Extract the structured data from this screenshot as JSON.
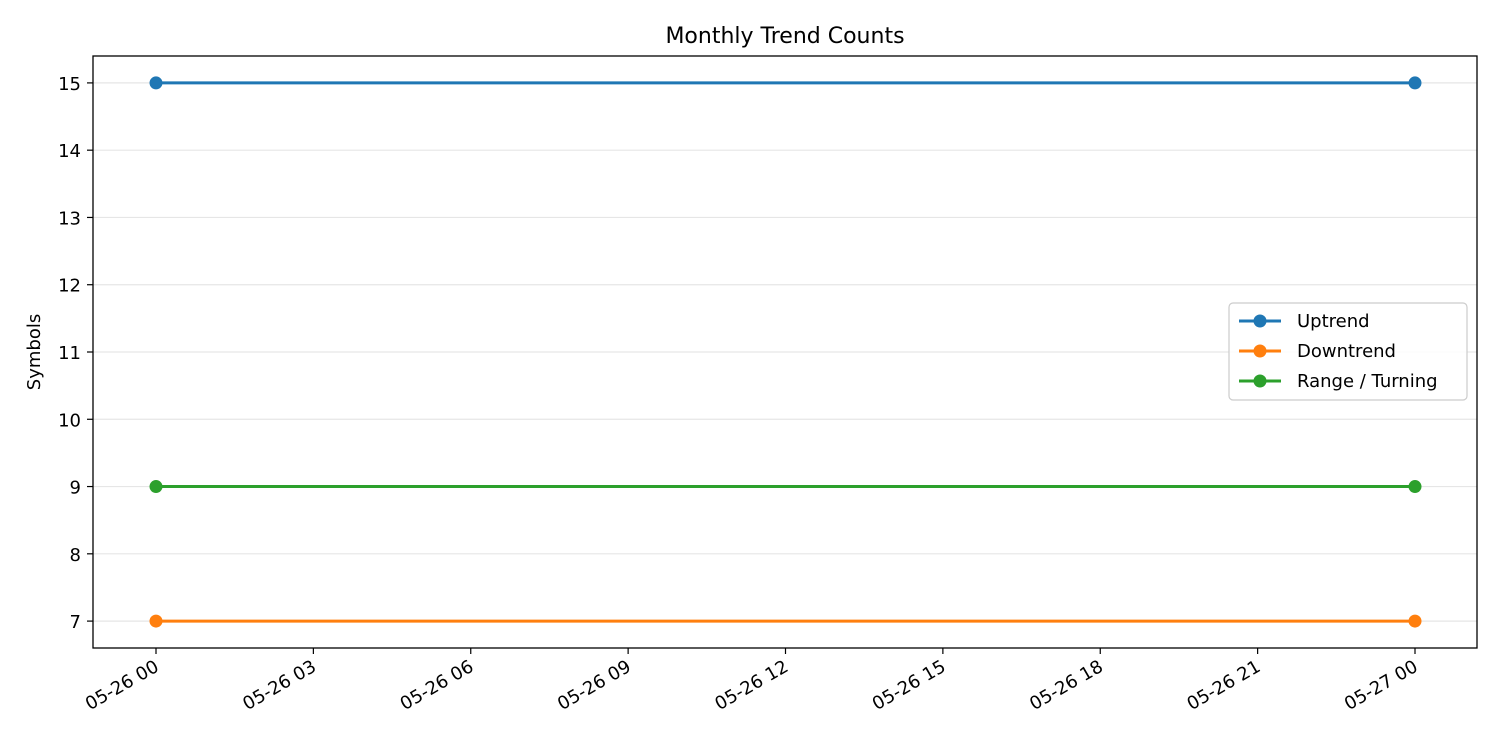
{
  "chart_data": {
    "type": "line",
    "title": "Monthly Trend Counts",
    "xlabel": "",
    "ylabel": "Symbols",
    "x": [
      "05-26 00",
      "05-27 00"
    ],
    "x_ticks": [
      "05-26 00",
      "05-26 03",
      "05-26 06",
      "05-26 09",
      "05-26 12",
      "05-26 15",
      "05-26 18",
      "05-26 21",
      "05-27 00"
    ],
    "y_ticks": [
      7,
      8,
      9,
      10,
      11,
      12,
      13,
      14,
      15
    ],
    "ylim": [
      6.6,
      15.4
    ],
    "grid": "y",
    "legend_position": "center-right",
    "series": [
      {
        "name": "Uptrend",
        "values": [
          15,
          15
        ],
        "color": "#1f77b4"
      },
      {
        "name": "Downtrend",
        "values": [
          7,
          7
        ],
        "color": "#ff7f0e"
      },
      {
        "name": "Range / Turning",
        "values": [
          9,
          9
        ],
        "color": "#2ca02c"
      }
    ]
  }
}
